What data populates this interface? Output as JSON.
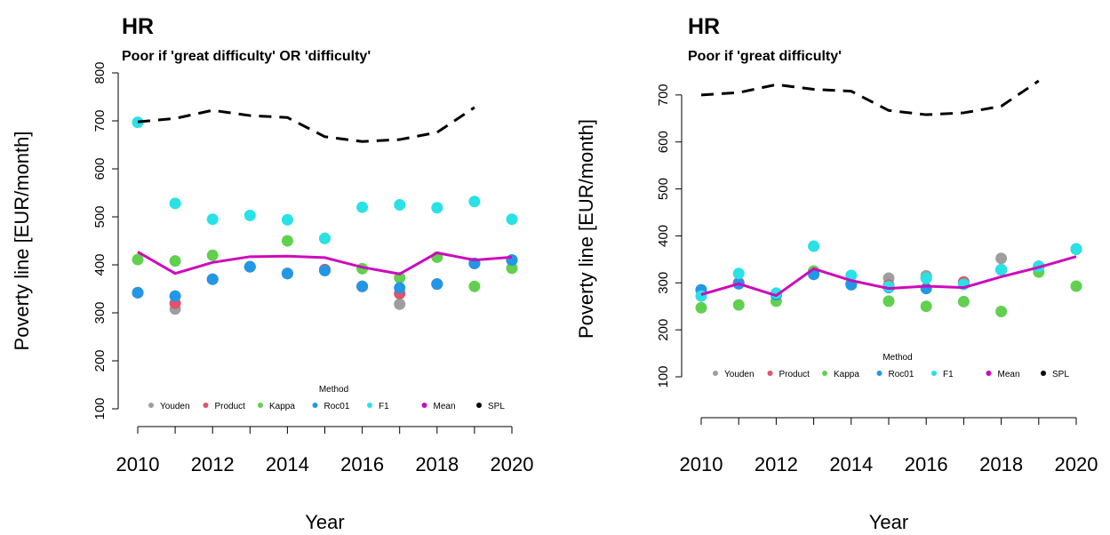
{
  "chart_data": [
    {
      "type": "line",
      "title": "HR",
      "subtitle": "Poor if 'great difficulty' OR 'difficulty'",
      "x_label": "Year",
      "y_label": "Poverty line [EUR/month]",
      "legend_title": "Method",
      "x": [
        2010,
        2011,
        2012,
        2013,
        2014,
        2015,
        2016,
        2017,
        2018,
        2019,
        2020
      ],
      "xlim": [
        2010,
        2020
      ],
      "xticks": [
        2010,
        2012,
        2014,
        2016,
        2018,
        2020
      ],
      "ylim": [
        100,
        800
      ],
      "yticks": [
        100,
        200,
        300,
        400,
        500,
        600,
        700,
        800
      ],
      "series": [
        {
          "name": "Youden",
          "color": "#9e9e9e",
          "style": "points",
          "values": [
            342,
            308,
            370,
            396,
            382,
            390,
            355,
            318,
            360,
            403,
            410
          ]
        },
        {
          "name": "Product",
          "color": "#df536b",
          "style": "points",
          "values": [
            342,
            320,
            370,
            396,
            382,
            390,
            355,
            340,
            360,
            403,
            410
          ]
        },
        {
          "name": "Kappa",
          "color": "#61d04f",
          "style": "points",
          "values": [
            411,
            408,
            420,
            396,
            450,
            455,
            392,
            373,
            416,
            355,
            393
          ]
        },
        {
          "name": "Roc01",
          "color": "#2297e6",
          "style": "points",
          "values": [
            342,
            335,
            370,
            396,
            382,
            388,
            355,
            352,
            360,
            403,
            410
          ]
        },
        {
          "name": "F1",
          "color": "#28e2e5",
          "style": "points",
          "values": [
            697,
            528,
            495,
            503,
            494,
            455,
            520,
            525,
            519,
            532,
            495
          ]
        },
        {
          "name": "Mean",
          "color": "#cd0bbc",
          "style": "solid",
          "values": [
            427,
            382,
            405,
            417,
            418,
            415,
            395,
            381,
            425,
            410,
            416
          ]
        },
        {
          "name": "SPL",
          "color": "#000000",
          "style": "dashed",
          "values": [
            698,
            705,
            722,
            711,
            707,
            667,
            657,
            661,
            676,
            728,
            null
          ]
        }
      ]
    },
    {
      "type": "line",
      "title": "HR",
      "subtitle": "Poor if 'great difficulty'",
      "x_label": "Year",
      "y_label": "Poverty line [EUR/month]",
      "legend_title": "Method",
      "x": [
        2010,
        2011,
        2012,
        2013,
        2014,
        2015,
        2016,
        2017,
        2018,
        2019,
        2020
      ],
      "xlim": [
        2010,
        2020
      ],
      "xticks": [
        2010,
        2012,
        2014,
        2016,
        2018,
        2020
      ],
      "ylim": [
        100,
        730
      ],
      "yticks": [
        100,
        200,
        300,
        400,
        500,
        600,
        700
      ],
      "series": [
        {
          "name": "Youden",
          "color": "#9e9e9e",
          "style": "points",
          "values": [
            285,
            300,
            275,
            325,
            298,
            310,
            315,
            300,
            352,
            335,
            372
          ]
        },
        {
          "name": "Product",
          "color": "#df536b",
          "style": "points",
          "values": [
            285,
            300,
            275,
            325,
            298,
            295,
            310,
            302,
            328,
            335,
            372
          ]
        },
        {
          "name": "Kappa",
          "color": "#61d04f",
          "style": "points",
          "values": [
            247,
            253,
            261,
            325,
            298,
            261,
            250,
            260,
            239,
            323,
            293
          ]
        },
        {
          "name": "Roc01",
          "color": "#2297e6",
          "style": "points",
          "values": [
            285,
            298,
            275,
            318,
            296,
            290,
            288,
            297,
            328,
            335,
            372
          ]
        },
        {
          "name": "F1",
          "color": "#28e2e5",
          "style": "points",
          "values": [
            272,
            320,
            278,
            378,
            316,
            292,
            310,
            297,
            328,
            335,
            372
          ]
        },
        {
          "name": "Mean",
          "color": "#cd0bbc",
          "style": "solid",
          "values": [
            275,
            298,
            273,
            330,
            305,
            288,
            293,
            290,
            313,
            333,
            356
          ]
        },
        {
          "name": "SPL",
          "color": "#000000",
          "style": "dashed",
          "values": [
            700,
            705,
            722,
            712,
            708,
            667,
            658,
            662,
            676,
            730,
            null
          ]
        }
      ]
    }
  ]
}
